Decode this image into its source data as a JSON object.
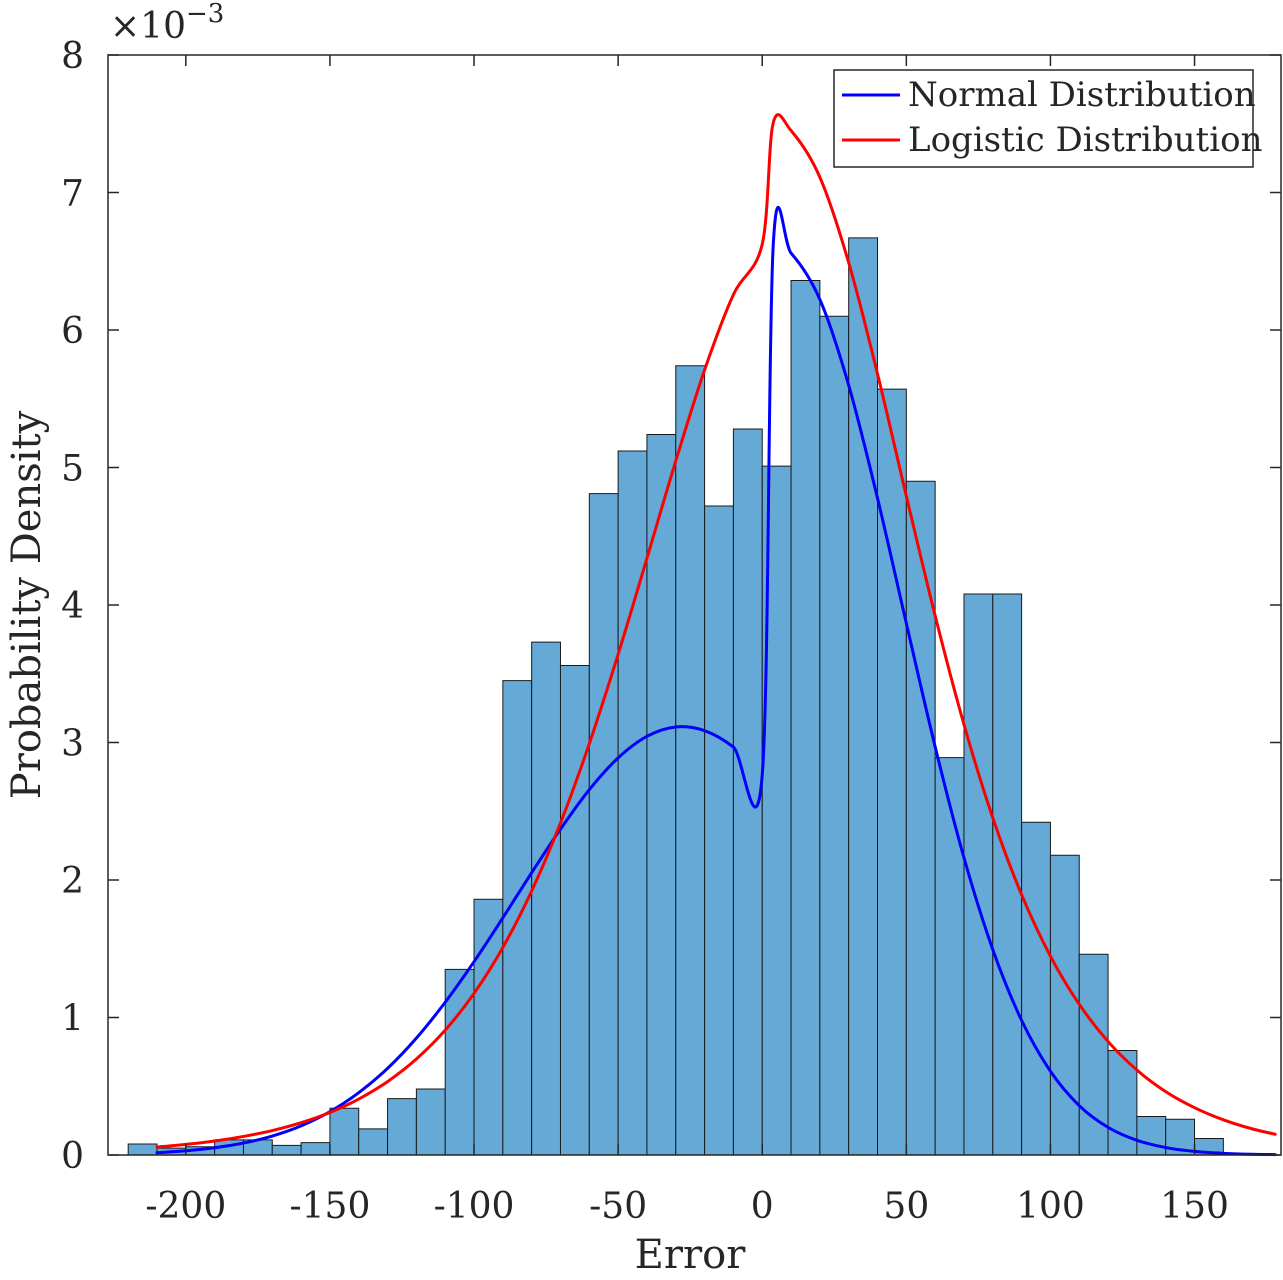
{
  "chart_data": {
    "type": "bar",
    "subtype": "histogram with fitted distribution curves",
    "title": "",
    "xlabel": "Error",
    "ylabel": "Probability Density",
    "y_exponent_label": "×10",
    "y_exponent_power": "−3",
    "xlim": [
      -227,
      180
    ],
    "ylim": [
      0,
      0.008
    ],
    "xticks": [
      -200,
      -150,
      -100,
      -50,
      0,
      50,
      100,
      150
    ],
    "xtick_labels": [
      "-200",
      "-150",
      "-100",
      "-50",
      "0",
      "50",
      "100",
      "150"
    ],
    "yticks": [
      0,
      0.001,
      0.002,
      0.003,
      0.004,
      0.005,
      0.006,
      0.007,
      0.008
    ],
    "ytick_labels": [
      "0",
      "1",
      "2",
      "3",
      "4",
      "5",
      "6",
      "7",
      "8"
    ],
    "grid": false,
    "bar_color": "#65a9d7",
    "bar_edge_color": "#1a1a1a",
    "bins": [
      {
        "x0": -220,
        "x1": -210,
        "value": 8e-05
      },
      {
        "x0": -210,
        "x1": -200,
        "value": 5e-05
      },
      {
        "x0": -200,
        "x1": -190,
        "value": 6e-05
      },
      {
        "x0": -190,
        "x1": -180,
        "value": 0.00011
      },
      {
        "x0": -180,
        "x1": -170,
        "value": 0.00011
      },
      {
        "x0": -170,
        "x1": -160,
        "value": 7e-05
      },
      {
        "x0": -160,
        "x1": -150,
        "value": 9e-05
      },
      {
        "x0": -150,
        "x1": -140,
        "value": 0.00034
      },
      {
        "x0": -140,
        "x1": -130,
        "value": 0.00019
      },
      {
        "x0": -130,
        "x1": -120,
        "value": 0.00041
      },
      {
        "x0": -120,
        "x1": -110,
        "value": 0.00048
      },
      {
        "x0": -110,
        "x1": -100,
        "value": 0.00135
      },
      {
        "x0": -100,
        "x1": -90,
        "value": 0.00186
      },
      {
        "x0": -90,
        "x1": -80,
        "value": 0.00345
      },
      {
        "x0": -80,
        "x1": -70,
        "value": 0.00373
      },
      {
        "x0": -70,
        "x1": -60,
        "value": 0.00356
      },
      {
        "x0": -60,
        "x1": -50,
        "value": 0.00481
      },
      {
        "x0": -50,
        "x1": -40,
        "value": 0.00512
      },
      {
        "x0": -40,
        "x1": -30,
        "value": 0.00524
      },
      {
        "x0": -30,
        "x1": -20,
        "value": 0.00574
      },
      {
        "x0": -20,
        "x1": -10,
        "value": 0.00472
      },
      {
        "x0": -10,
        "x1": 0,
        "value": 0.00528
      },
      {
        "x0": 0,
        "x1": 10,
        "value": 0.00501
      },
      {
        "x0": 10,
        "x1": 20,
        "value": 0.00636
      },
      {
        "x0": 20,
        "x1": 30,
        "value": 0.0061
      },
      {
        "x0": 30,
        "x1": 40,
        "value": 0.00667
      },
      {
        "x0": 40,
        "x1": 50,
        "value": 0.00557
      },
      {
        "x0": 50,
        "x1": 60,
        "value": 0.0049
      },
      {
        "x0": 60,
        "x1": 70,
        "value": 0.00289
      },
      {
        "x0": 70,
        "x1": 80,
        "value": 0.00408
      },
      {
        "x0": 80,
        "x1": 90,
        "value": 0.00408
      },
      {
        "x0": 90,
        "x1": 100,
        "value": 0.00242
      },
      {
        "x0": 100,
        "x1": 110,
        "value": 0.00218
      },
      {
        "x0": 110,
        "x1": 120,
        "value": 0.00146
      },
      {
        "x0": 120,
        "x1": 130,
        "value": 0.00076
      },
      {
        "x0": 130,
        "x1": 140,
        "value": 0.00028
      },
      {
        "x0": 140,
        "x1": 150,
        "value": 0.00026
      },
      {
        "x0": 150,
        "x1": 160,
        "value": 0.00012
      },
      {
        "x0": 160,
        "x1": 170,
        "value": 1e-05
      }
    ],
    "series": [
      {
        "name": "Normal Distribution",
        "type": "line",
        "color": "#0000ff",
        "x": [
          -210,
          -200,
          -190,
          -180,
          -170,
          -160,
          -150,
          -140,
          -130,
          -120,
          -110,
          -100,
          -90,
          -80,
          -70,
          -60,
          -50,
          -40,
          -30,
          -20,
          -10,
          0,
          3.8,
          10,
          20,
          30,
          40,
          50,
          60,
          70,
          80,
          90,
          100,
          110,
          120,
          130,
          140,
          150,
          160,
          170,
          178
        ],
        "y": [
          1.7e-05,
          3.1e-05,
          5.3e-05,
          8.7e-05,
          0.000138,
          0.000212,
          0.000315,
          0.000453,
          0.00063,
          0.00085,
          0.001111,
          0.001406,
          0.001725,
          0.002053,
          0.00237,
          0.002657,
          0.002888,
          0.003045,
          0.003113,
          0.003086,
          0.002967,
          0.002765,
          0.00661,
          0.006559,
          0.006222,
          0.005598,
          0.004777,
          0.003867,
          0.002969,
          0.002162,
          0.001494,
          0.000979,
          0.000609,
          0.000359,
          0.000201,
          0.000107,
          5.4e-05,
          2.6e-05,
          1.2e-05,
          5e-06,
          3e-06
        ]
      },
      {
        "name": "Logistic Distribution",
        "type": "line",
        "color": "#ff0000",
        "x": [
          -210,
          -200,
          -190,
          -180,
          -170,
          -160,
          -150,
          -140,
          -130,
          -120,
          -110,
          -100,
          -90,
          -80,
          -70,
          -60,
          -50,
          -40,
          -30,
          -20,
          -10,
          0,
          3.8,
          10,
          20,
          30,
          40,
          50,
          60,
          70,
          80,
          90,
          100,
          110,
          120,
          130,
          140,
          150,
          160,
          170,
          178
        ],
        "y": [
          5.8e-05,
          7.7e-05,
          0.000102,
          0.000135,
          0.000178,
          0.000235,
          0.000309,
          0.000407,
          0.000534,
          0.000698,
          0.000908,
          0.001175,
          0.001509,
          0.00192,
          0.002414,
          0.002991,
          0.003641,
          0.00434,
          0.005048,
          0.005709,
          0.006257,
          0.006624,
          0.007505,
          0.00745,
          0.007111,
          0.00649,
          0.005681,
          0.004793,
          0.003922,
          0.003131,
          0.002452,
          0.001893,
          0.001446,
          0.001096,
          0.000825,
          0.000618,
          0.000461,
          0.000344,
          0.000256,
          0.00019,
          0.000151
        ]
      }
    ],
    "legend": {
      "position": "top-right",
      "entries": [
        "Normal Distribution",
        "Logistic Distribution"
      ]
    }
  }
}
